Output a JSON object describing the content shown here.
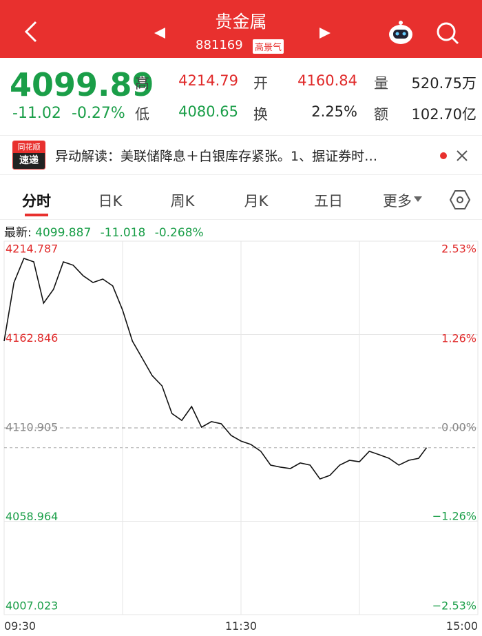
{
  "header": {
    "title": "贵金属",
    "code": "881169",
    "badge": "高景气"
  },
  "quote": {
    "price": "4099.89",
    "change": "-11.02",
    "change_pct": "-0.27%",
    "fields": [
      {
        "label": "高",
        "value": "4214.79"
      },
      {
        "label": "开",
        "value": "4160.84"
      },
      {
        "label": "量",
        "value": "520.75万"
      },
      {
        "label": "低",
        "value": "4080.65"
      },
      {
        "label": "换",
        "value": "2.25%"
      },
      {
        "label": "额",
        "value": "102.70亿"
      }
    ]
  },
  "news": {
    "logo_top": "同花顺",
    "logo_bottom": "速递",
    "text": "异动解读：美联储降息＋白银库存紧张。1、据证券时…"
  },
  "tabs": [
    "分时",
    "日K",
    "周K",
    "月K",
    "五日",
    "更多"
  ],
  "latest": {
    "label": "最新:",
    "price": 4099.887,
    "change": -11.018,
    "change_pct": "-0.268%"
  },
  "chart_data": {
    "type": "line",
    "color": "#111111",
    "x": [
      0,
      5,
      10,
      15,
      20,
      25,
      30,
      35,
      40,
      45,
      50,
      55,
      60,
      65,
      70,
      75,
      80,
      85,
      90,
      95,
      100,
      105,
      110,
      115,
      120,
      125,
      130,
      135,
      140,
      145,
      150,
      155,
      160,
      165,
      170,
      175,
      180,
      185,
      190,
      195,
      200,
      205,
      210,
      214
    ],
    "values": [
      4159.2,
      4191.8,
      4205.2,
      4203.3,
      4180.3,
      4188.0,
      4203.3,
      4201.4,
      4195.6,
      4191.8,
      4193.7,
      4189.9,
      4176.5,
      4159.2,
      4149.6,
      4140.0,
      4134.3,
      4118.9,
      4115.1,
      4122.8,
      4111.3,
      4114.4,
      4113.2,
      4106.7,
      4103.6,
      4101.7,
      4097.9,
      4090.2,
      4089.1,
      4088.3,
      4091.4,
      4090.2,
      4082.5,
      4084.5,
      4090.2,
      4092.9,
      4092.1,
      4097.9,
      4096.0,
      4094.0,
      4090.2,
      4092.9,
      4094.0,
      4099.9
    ],
    "xlim": [
      0,
      240
    ],
    "xticks": [
      {
        "value": 0,
        "label": "09:30"
      },
      {
        "value": 60,
        "label": null
      },
      {
        "value": 120,
        "label": "11:30"
      },
      {
        "value": 180,
        "label": null
      },
      {
        "value": 240,
        "label": "15:00"
      }
    ],
    "ylim": [
      4007.023,
      4214.787
    ],
    "yticks": [
      4214.787,
      4162.846,
      4110.905,
      4058.964,
      4007.023
    ],
    "y2lim": [
      -2.53,
      2.53
    ],
    "y2ticks": [
      {
        "value": 2.53,
        "label": "2.53%"
      },
      {
        "value": 1.26,
        "label": "1.26%"
      },
      {
        "value": 0,
        "label": "0.00%"
      },
      {
        "value": -1.26,
        "label": "−1.26%"
      },
      {
        "value": -2.53,
        "label": "−2.53%"
      }
    ],
    "grid": true
  }
}
